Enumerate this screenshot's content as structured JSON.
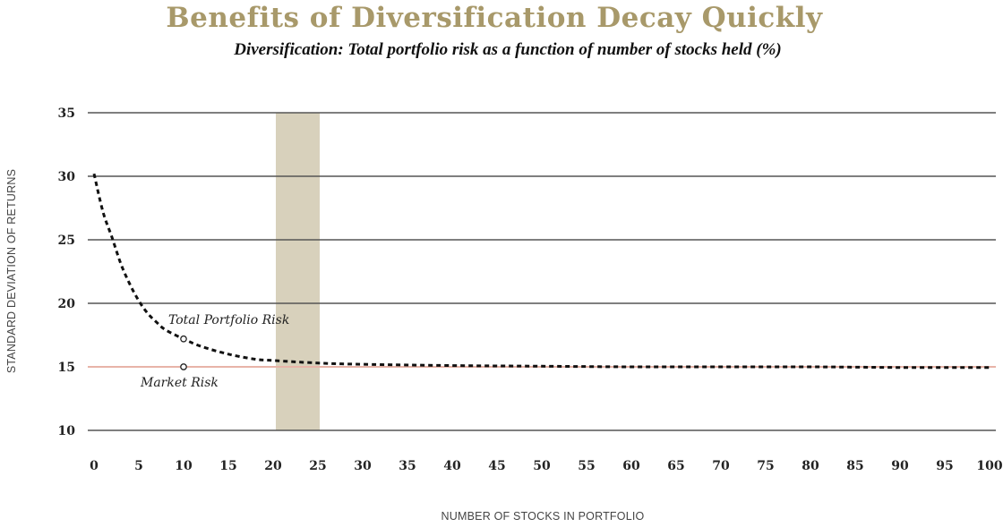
{
  "header": {
    "title": "Benefits of Diversification Decay Quickly",
    "subtitle": "Diversification: Total portfolio risk as a function of number of stocks held (%)"
  },
  "colors": {
    "title": "#a8996a",
    "band": "#d8d1bc",
    "market_line": "#e8b4a8",
    "grid": "#555555",
    "curve": "#111111"
  },
  "chart_data": {
    "type": "line",
    "title": "",
    "xlabel": "NUMBER OF STOCKS IN PORTFOLIO",
    "ylabel": "STANDARD DEVIATION OF RETURNS",
    "xlim": [
      0,
      100
    ],
    "ylim": [
      10,
      35
    ],
    "xticks": [
      0,
      5,
      10,
      15,
      20,
      25,
      30,
      35,
      40,
      45,
      50,
      55,
      60,
      65,
      70,
      75,
      80,
      85,
      90,
      95,
      100
    ],
    "yticks": [
      10,
      15,
      20,
      25,
      30,
      35
    ],
    "grid": "horizontal",
    "highlight_band": {
      "x_start": 20,
      "x_end": 25
    },
    "series": [
      {
        "name": "Total Portfolio Risk",
        "style": "dotted",
        "x": [
          0,
          1,
          2,
          3,
          4,
          5,
          6,
          7,
          8,
          10,
          12,
          15,
          18,
          20,
          25,
          30,
          40,
          50,
          60,
          70,
          80,
          90,
          100
        ],
        "values": [
          30.2,
          27.2,
          25.2,
          23.1,
          21.5,
          20.2,
          19.2,
          18.5,
          17.9,
          17.2,
          16.6,
          16.0,
          15.6,
          15.5,
          15.3,
          15.2,
          15.1,
          15.05,
          15.0,
          15.0,
          15.0,
          14.95,
          14.95
        ]
      },
      {
        "name": "Market Risk",
        "style": "solid",
        "x": [
          0,
          100
        ],
        "values": [
          15,
          15
        ]
      }
    ],
    "annotations": [
      {
        "text": "Total Portfolio Risk",
        "marker_x": 10,
        "marker_y": 17.2
      },
      {
        "text": "Market Risk",
        "marker_x": 10,
        "marker_y": 15
      }
    ]
  }
}
